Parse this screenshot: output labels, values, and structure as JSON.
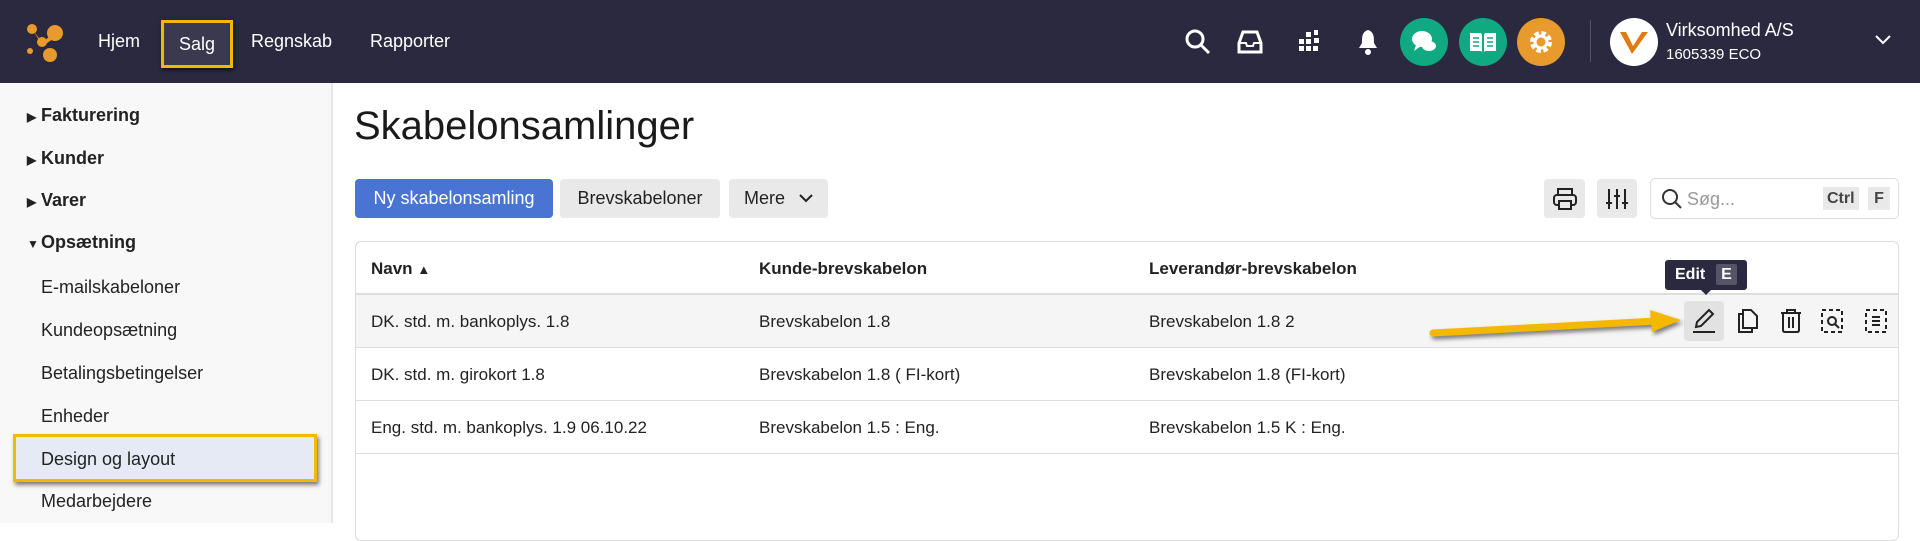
{
  "header": {
    "nav": [
      "Hjem",
      "Salg",
      "Regnskab",
      "Rapporter"
    ],
    "active_nav": "Salg",
    "company": "Virksomhed A/S",
    "company_id": "1605339 ECO",
    "colors": {
      "bg": "#2a2940",
      "green": "#10a982",
      "orange": "#e99a2c",
      "highlight": "#f5b800"
    }
  },
  "sidebar": {
    "groups": [
      {
        "label": "Fakturering",
        "expanded": false
      },
      {
        "label": "Kunder",
        "expanded": false
      },
      {
        "label": "Varer",
        "expanded": false
      },
      {
        "label": "Opsætning",
        "expanded": true
      }
    ],
    "items": [
      "E-mailskabeloner",
      "Kundeopsætning",
      "Betalingsbetingelser",
      "Enheder",
      "Design og layout",
      "Medarbejdere"
    ],
    "active_item": "Design og layout"
  },
  "main": {
    "title": "Skabelonsamlinger",
    "new_button": "Ny skabelonsamling",
    "templates_button": "Brevskabeloner",
    "more_button": "Mere",
    "search_placeholder": "Søg...",
    "search_shortcut": [
      "Ctrl",
      "F"
    ],
    "table": {
      "columns": [
        "Navn",
        "Kunde-brevskabelon",
        "Leverandør-brevskabelon"
      ],
      "sort": "Navn ascending",
      "rows": [
        [
          "DK. std. m. bankoplys. 1.8",
          "Brevskabelon 1.8",
          "Brevskabelon 1.8 2"
        ],
        [
          "DK. std. m. girokort 1.8",
          "Brevskabelon 1.8 ( FI-kort)",
          "Brevskabelon 1.8 (FI-kort)"
        ],
        [
          "Eng. std. m. bankoplys. 1.9 06.10.22",
          "Brevskabelon 1.5 : Eng.",
          "Brevskabelon 1.5 K : Eng."
        ]
      ]
    },
    "tooltip": {
      "label": "Edit",
      "key": "E"
    }
  }
}
